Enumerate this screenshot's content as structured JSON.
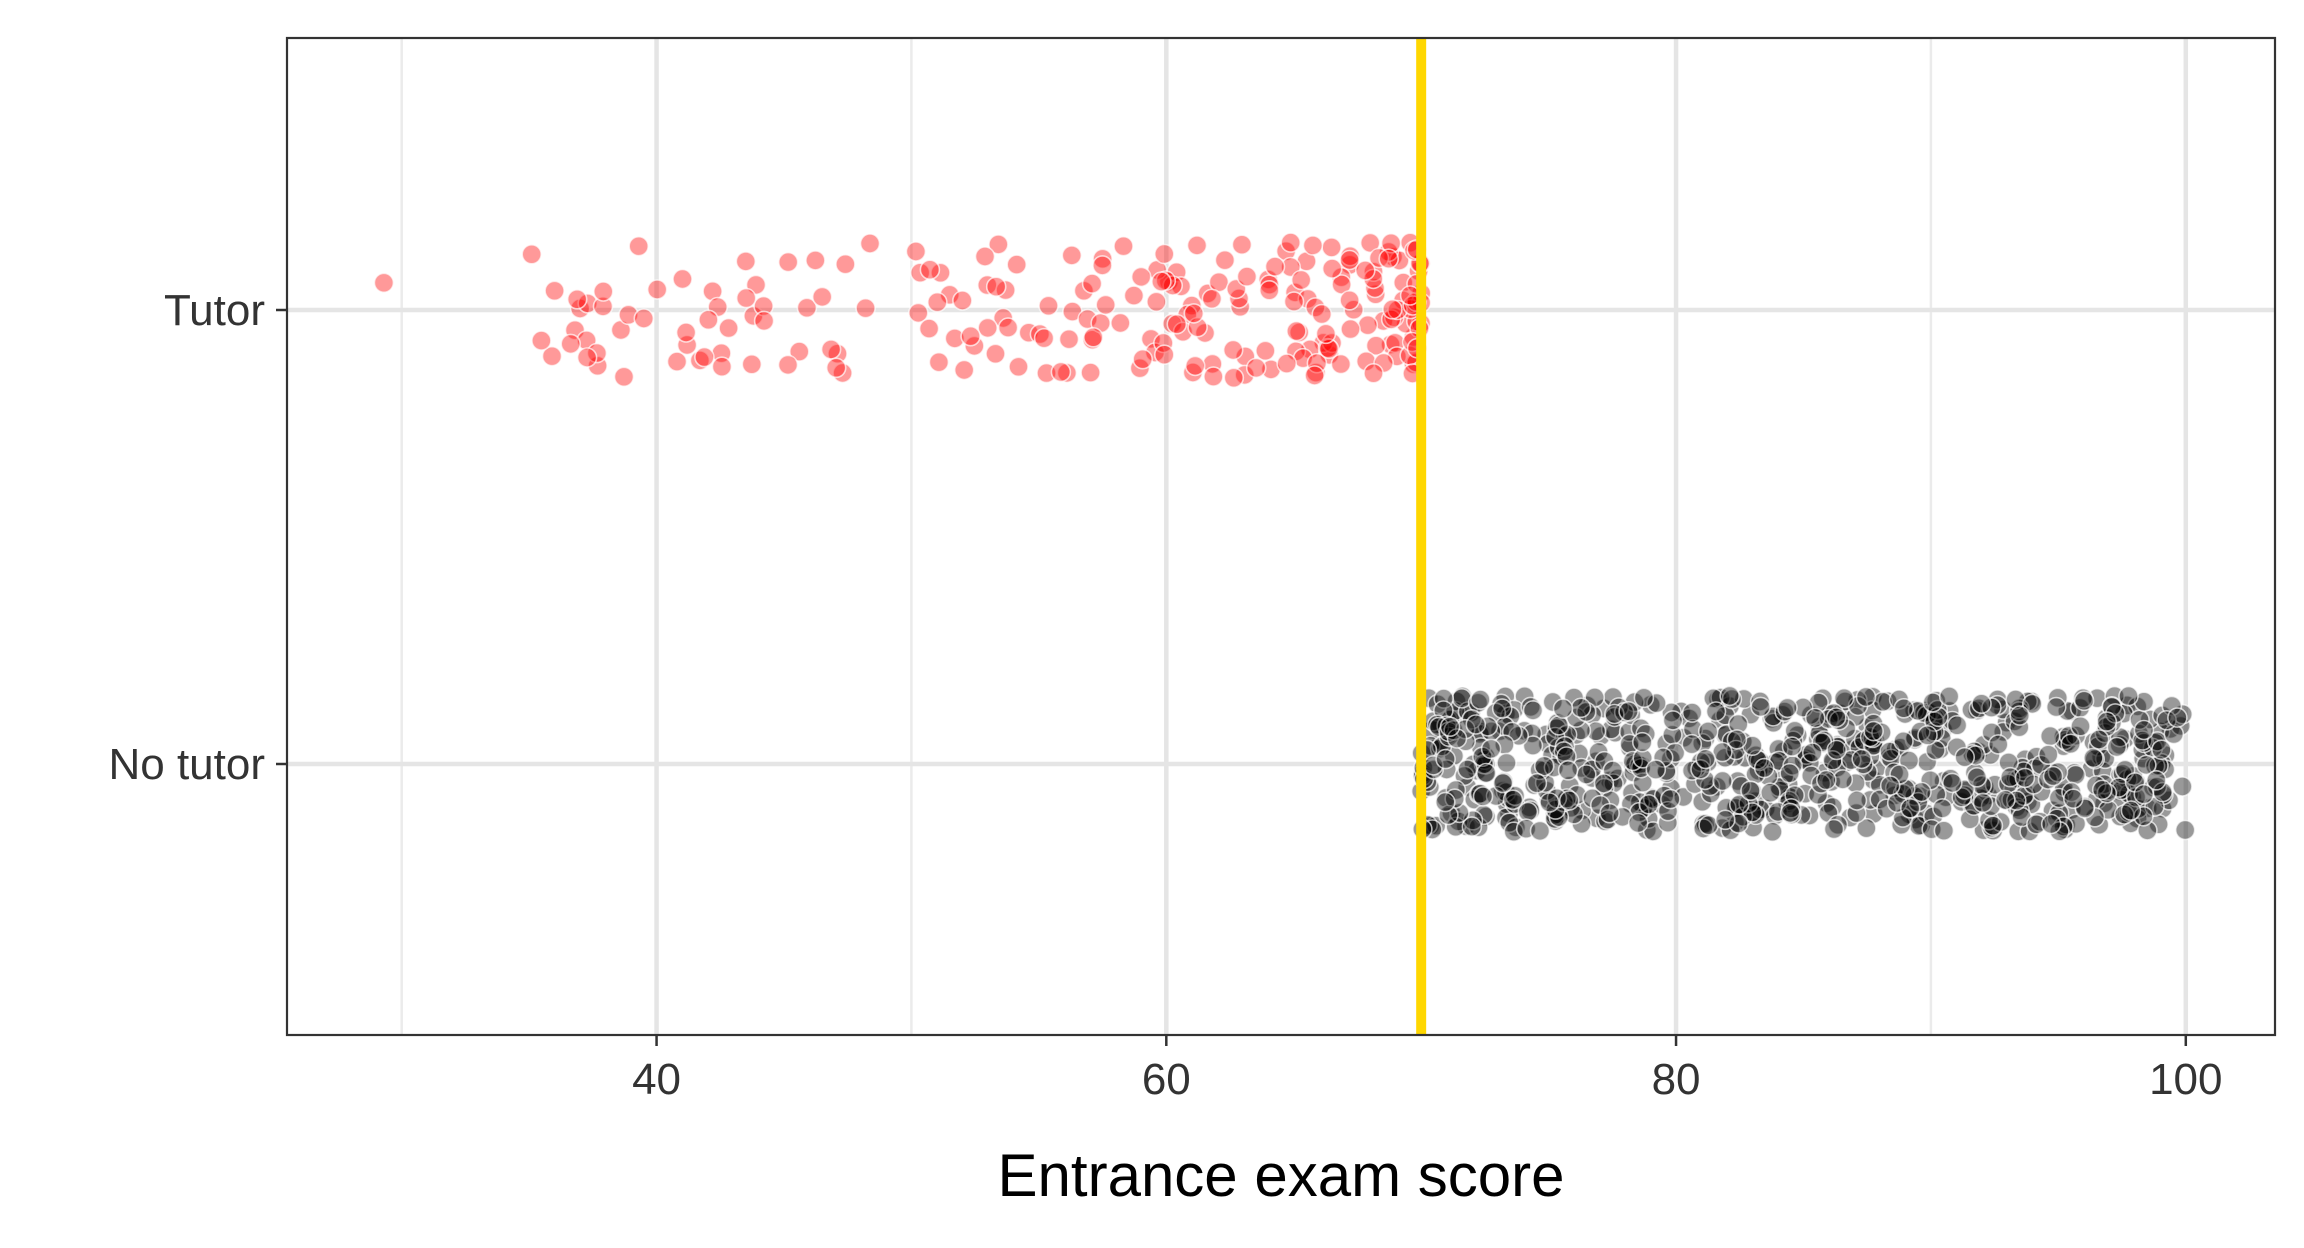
{
  "chart_data": {
    "type": "scatter",
    "title": "",
    "xlabel": "Entrance exam score",
    "ylabel": "",
    "xlim": [
      25.5,
      103.5
    ],
    "x_ticks": [
      40,
      60,
      80,
      100
    ],
    "x_minor_gridlines": [
      30,
      50,
      70,
      90
    ],
    "y_categories": [
      "No tutor",
      "Tutor"
    ],
    "grid": true,
    "legend": "none",
    "cutoff": {
      "x": 70,
      "color": "#ffd700"
    },
    "jitter_height": 0.15,
    "series": [
      {
        "name": "Tutor",
        "category": "Tutor",
        "color": "#ff0000",
        "opacity": 0.4,
        "count": 240,
        "x_range": [
          29,
          70
        ],
        "x_examples": [
          29.3,
          35.1,
          36.0,
          36.8,
          37.0,
          37.3,
          37.9,
          38.6,
          38.9,
          39.3,
          39.5,
          40.8,
          41.2,
          41.7,
          42.2,
          42.4,
          43.5,
          43.8,
          43.9,
          44.2,
          45.6,
          45.9,
          46.5,
          47.1,
          47.3,
          48.2,
          51.5,
          52.0,
          53.3,
          53.6,
          54.2,
          55.3,
          56.1,
          57.5,
          58.2,
          59.4,
          60.1,
          61.0,
          62.3,
          63.1,
          64.0,
          64.7,
          65.5,
          66.4,
          67.2,
          68.0,
          68.8,
          69.3,
          69.7,
          69.9
        ]
      },
      {
        "name": "No tutor",
        "category": "No tutor",
        "color": "#000000",
        "opacity": 0.4,
        "count": 760,
        "x_range": [
          70,
          100
        ],
        "x_examples": [
          70.0,
          70.3,
          71.5,
          73.2,
          75.0,
          77.4,
          79.8,
          81.6,
          83.5,
          85.1,
          87.3,
          89.4,
          91.2,
          93.0,
          93.8,
          95.2,
          96.8,
          97.9,
          98.5,
          99.2,
          99.4,
          99.8
        ]
      }
    ]
  }
}
